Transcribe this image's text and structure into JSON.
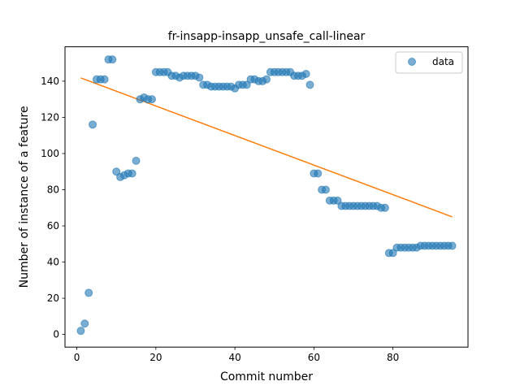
{
  "chart_data": {
    "type": "scatter",
    "title": "fr-insapp-insapp_unsafe_call-linear",
    "xlabel": "Commit number",
    "ylabel": "Number of instance of a feature",
    "xlim": [
      -3,
      99
    ],
    "ylim": [
      -7,
      159
    ],
    "xticks": [
      0,
      20,
      40,
      60,
      80
    ],
    "yticks": [
      0,
      20,
      40,
      60,
      80,
      100,
      120,
      140
    ],
    "grid": false,
    "legend_position": "top-right",
    "series": [
      {
        "name": "data",
        "kind": "scatter",
        "color": "#1f77b4",
        "x": [
          1,
          2,
          3,
          4,
          5,
          6,
          7,
          8,
          9,
          10,
          11,
          12,
          13,
          14,
          15,
          16,
          17,
          18,
          19,
          20,
          21,
          22,
          23,
          24,
          25,
          26,
          27,
          28,
          29,
          30,
          31,
          32,
          33,
          34,
          35,
          36,
          37,
          38,
          39,
          40,
          41,
          42,
          43,
          44,
          45,
          46,
          47,
          48,
          49,
          50,
          51,
          52,
          53,
          54,
          55,
          56,
          57,
          58,
          59,
          60,
          61,
          62,
          63,
          64,
          65,
          66,
          67,
          68,
          69,
          70,
          71,
          72,
          73,
          74,
          75,
          76,
          77,
          78,
          79,
          80,
          81,
          82,
          83,
          84,
          85,
          86,
          87,
          88,
          89,
          90,
          91,
          92,
          93,
          94,
          95
        ],
        "y": [
          2,
          6,
          23,
          116,
          141,
          141,
          141,
          152,
          152,
          90,
          87,
          88,
          89,
          89,
          96,
          130,
          131,
          130,
          130,
          145,
          145,
          145,
          145,
          143,
          143,
          142,
          143,
          143,
          143,
          143,
          142,
          138,
          138,
          137,
          137,
          137,
          137,
          137,
          137,
          136,
          138,
          138,
          138,
          141,
          141,
          140,
          140,
          141,
          145,
          145,
          145,
          145,
          145,
          145,
          143,
          143,
          143,
          144,
          138,
          89,
          89,
          80,
          80,
          74,
          74,
          74,
          71,
          71,
          71,
          71,
          71,
          71,
          71,
          71,
          71,
          71,
          70,
          70,
          45,
          45,
          48,
          48,
          48,
          48,
          48,
          48,
          49,
          49,
          49,
          49,
          49,
          49,
          49,
          49,
          49
        ]
      },
      {
        "name": "",
        "kind": "line",
        "color": "#ff7f0e",
        "x": [
          1,
          95
        ],
        "y": [
          141.8,
          65
        ]
      }
    ]
  }
}
